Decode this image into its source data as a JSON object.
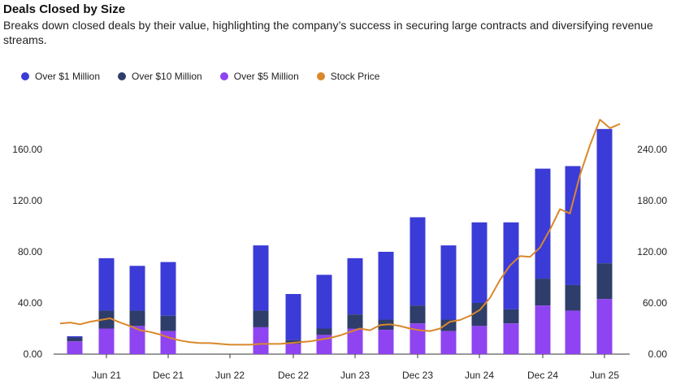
{
  "title": "Deals Closed by Size",
  "subtitle": "Breaks down closed deals by their value, highlighting the company’s success in securing large contracts and diversifying revenue streams.",
  "colors": {
    "over1m": "#3b3bd8",
    "over10m": "#2f3d6b",
    "over5m": "#8e44f0",
    "stock": "#d9882b"
  },
  "legend": [
    {
      "label": "Over $1 Million",
      "color": "#3b3bd8"
    },
    {
      "label": "Over $10 Million",
      "color": "#2f3d6b"
    },
    {
      "label": "Over $5 Million",
      "color": "#8e44f0"
    },
    {
      "label": "Stock Price",
      "color": "#d9882b"
    }
  ],
  "chart_data": {
    "type": "bar",
    "stacked": true,
    "x_ticks": [
      "Jun 21",
      "Dec 21",
      "Jun 22",
      "Dec 22",
      "Jun 23",
      "Dec 23",
      "Jun 24",
      "Dec 24",
      "Jun 25"
    ],
    "y_left": {
      "ticks": [
        "0.00",
        "40.00",
        "80.00",
        "120.00",
        "160.00"
      ],
      "range": [
        0,
        180
      ]
    },
    "y_right": {
      "ticks": [
        "0.00",
        "60.00",
        "120.00",
        "180.00",
        "240.00"
      ],
      "range": [
        0,
        270
      ]
    },
    "bars": [
      {
        "total": 14,
        "over5m": 10,
        "over10m": 13
      },
      {
        "total": 75,
        "over5m": 20,
        "over10m": 34
      },
      {
        "total": 69,
        "over5m": 22,
        "over10m": 34
      },
      {
        "total": 72,
        "over5m": 18,
        "over10m": 30
      },
      {
        "total": 85,
        "over5m": 21,
        "over10m": 34
      },
      {
        "total": 47,
        "over5m": 8,
        "over10m": 11
      },
      {
        "total": 62,
        "over5m": 15,
        "over10m": 20
      },
      {
        "total": 75,
        "over5m": 20,
        "over10m": 31
      },
      {
        "total": 80,
        "over5m": 19,
        "over10m": 27
      },
      {
        "total": 107,
        "over5m": 24,
        "over10m": 38
      },
      {
        "total": 85,
        "over5m": 18,
        "over10m": 27
      },
      {
        "total": 103,
        "over5m": 22,
        "over10m": 40
      },
      {
        "total": 103,
        "over5m": 24,
        "over10m": 35
      },
      {
        "total": 145,
        "over5m": 38,
        "over10m": 59
      },
      {
        "total": 147,
        "over5m": 34,
        "over10m": 54
      },
      {
        "total": 176,
        "over5m": 43,
        "over10m": 71
      }
    ],
    "series": [
      {
        "name": "Over $1 Million"
      },
      {
        "name": "Over $10 Million"
      },
      {
        "name": "Over $5 Million"
      },
      {
        "name": "Stock Price",
        "values": [
          36,
          37,
          35,
          38,
          40,
          42,
          37,
          33,
          28,
          26,
          23,
          19,
          16,
          14,
          13,
          13,
          12,
          11,
          11,
          11,
          12,
          12,
          12,
          13,
          14,
          15,
          17,
          19,
          22,
          26,
          30,
          28,
          34,
          35,
          33,
          30,
          28,
          27,
          30,
          38,
          40,
          45,
          52,
          66,
          87,
          104,
          115,
          114,
          125,
          146,
          170,
          165,
          210,
          245,
          275,
          265,
          270
        ]
      }
    ]
  }
}
